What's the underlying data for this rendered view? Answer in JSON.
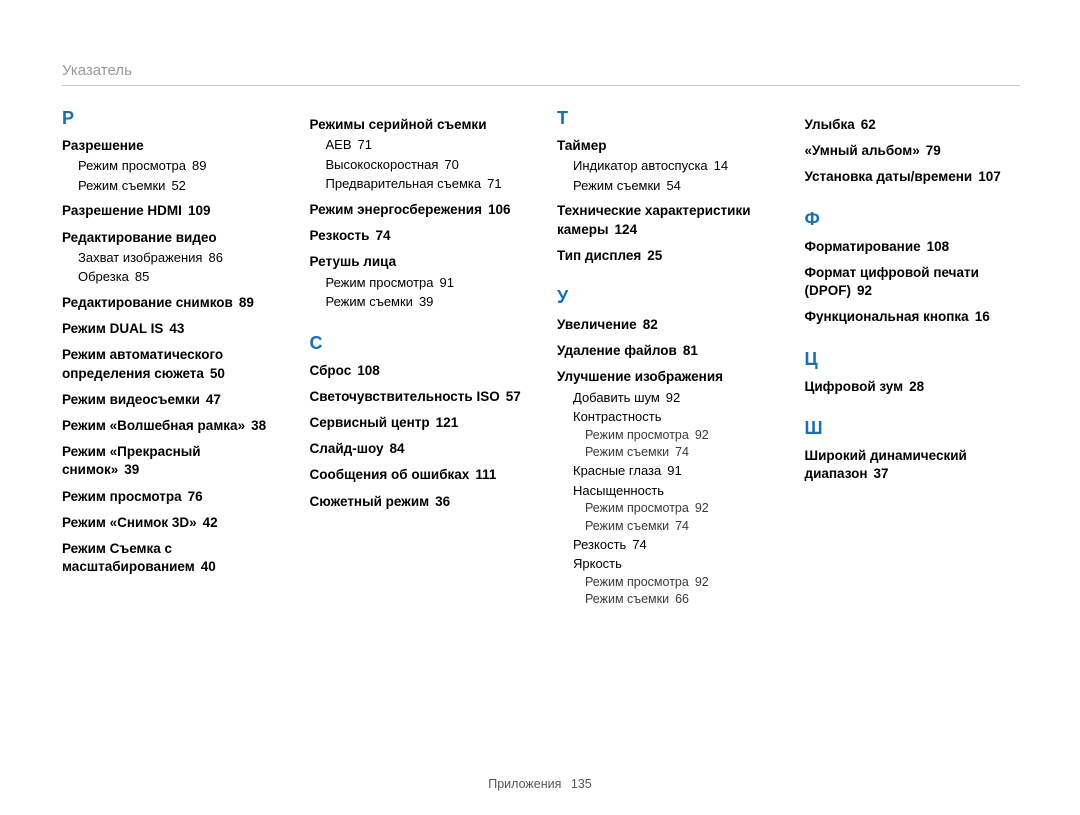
{
  "header": "Указатель",
  "footer": {
    "label": "Приложения",
    "page": "135"
  },
  "columns": [
    [
      {
        "letter": "Р",
        "groups": [
          {
            "term": "Разрешение",
            "subs": [
              {
                "text": "Режим просмотра",
                "page": "89"
              },
              {
                "text": "Режим съемки",
                "page": "52"
              }
            ]
          },
          {
            "term": "Разрешение HDMI",
            "page": "109"
          },
          {
            "term": "Редактирование видео",
            "subs": [
              {
                "text": "Захват изображения",
                "page": "86"
              },
              {
                "text": "Обрезка",
                "page": "85"
              }
            ]
          },
          {
            "term": "Редактирование снимков",
            "page": "89"
          },
          {
            "term": "Режим DUAL IS",
            "page": "43"
          },
          {
            "term": "Режим автоматического определения сюжета",
            "page": "50"
          },
          {
            "term": "Режим видеосъемки",
            "page": "47"
          },
          {
            "term": "Режим «Волшебная рамка»",
            "page": "38"
          },
          {
            "term": "Режим «Прекрасный снимок»",
            "page": "39"
          },
          {
            "term": "Режим просмотра",
            "page": "76"
          },
          {
            "term": "Режим «Снимок 3D»",
            "page": "42"
          },
          {
            "term": "Режим Съемка с масштабированием",
            "page": "40"
          }
        ]
      }
    ],
    [
      {
        "letter": "",
        "groups": [
          {
            "term": "Режимы серийной съемки",
            "subs": [
              {
                "text": "AEB",
                "page": "71"
              },
              {
                "text": "Высокоскоростная",
                "page": "70"
              },
              {
                "text": "Предварительная съемка",
                "page": "71"
              }
            ]
          },
          {
            "term": "Режим энергосбережения",
            "page": "106"
          },
          {
            "term": "Резкость",
            "page": "74"
          },
          {
            "term": "Ретушь лица",
            "subs": [
              {
                "text": "Режим просмотра",
                "page": "91"
              },
              {
                "text": "Режим съемки",
                "page": "39"
              }
            ]
          }
        ]
      },
      {
        "letter": "С",
        "groups": [
          {
            "term": "Сброс",
            "page": "108"
          },
          {
            "term": "Светочувствительность ISO",
            "page": "57"
          },
          {
            "term": "Сервисный центр",
            "page": "121"
          },
          {
            "term": "Слайд-шоу",
            "page": "84"
          },
          {
            "term": "Сообщения об ошибках",
            "page": "111"
          },
          {
            "term": "Сюжетный режим",
            "page": "36"
          }
        ]
      }
    ],
    [
      {
        "letter": "Т",
        "groups": [
          {
            "term": "Таймер",
            "subs": [
              {
                "text": "Индикатор автоспуска",
                "page": "14"
              },
              {
                "text": "Режим съемки",
                "page": "54"
              }
            ]
          },
          {
            "term": "Технические характеристики камеры",
            "page": "124"
          },
          {
            "term": "Тип дисплея",
            "page": "25"
          }
        ]
      },
      {
        "letter": "У",
        "groups": [
          {
            "term": "Увеличение",
            "page": "82"
          },
          {
            "term": "Удаление файлов",
            "page": "81"
          },
          {
            "term": "Улучшение изображения",
            "subs": [
              {
                "text": "Добавить шум",
                "page": "92"
              },
              {
                "text": "Контрастность",
                "subs2": [
                  {
                    "text": "Режим просмотра",
                    "page": "92"
                  },
                  {
                    "text": "Режим съемки",
                    "page": "74"
                  }
                ]
              },
              {
                "text": "Красные глаза",
                "page": "91"
              },
              {
                "text": "Насыщенность",
                "subs2": [
                  {
                    "text": "Режим просмотра",
                    "page": "92"
                  },
                  {
                    "text": "Режим съемки",
                    "page": "74"
                  }
                ]
              },
              {
                "text": "Резкость",
                "page": "74"
              },
              {
                "text": "Яркость",
                "subs2": [
                  {
                    "text": "Режим просмотра",
                    "page": "92"
                  },
                  {
                    "text": "Режим съемки",
                    "page": "66"
                  }
                ]
              }
            ]
          }
        ]
      }
    ],
    [
      {
        "letter": "",
        "groups": [
          {
            "term": "Улыбка",
            "page": "62"
          },
          {
            "term": "«Умный альбом»",
            "page": "79"
          },
          {
            "term": "Установка даты/времени",
            "page": "107"
          }
        ]
      },
      {
        "letter": "Ф",
        "groups": [
          {
            "term": "Форматирование",
            "page": "108"
          },
          {
            "term": "Формат цифровой печати (DPOF)",
            "page": "92"
          },
          {
            "term": "Функциональная кнопка",
            "page": "16"
          }
        ]
      },
      {
        "letter": "Ц",
        "groups": [
          {
            "term": "Цифровой зум",
            "page": "28"
          }
        ]
      },
      {
        "letter": "Ш",
        "groups": [
          {
            "term": "Широкий динамический диапазон",
            "page": "37"
          }
        ]
      }
    ]
  ]
}
